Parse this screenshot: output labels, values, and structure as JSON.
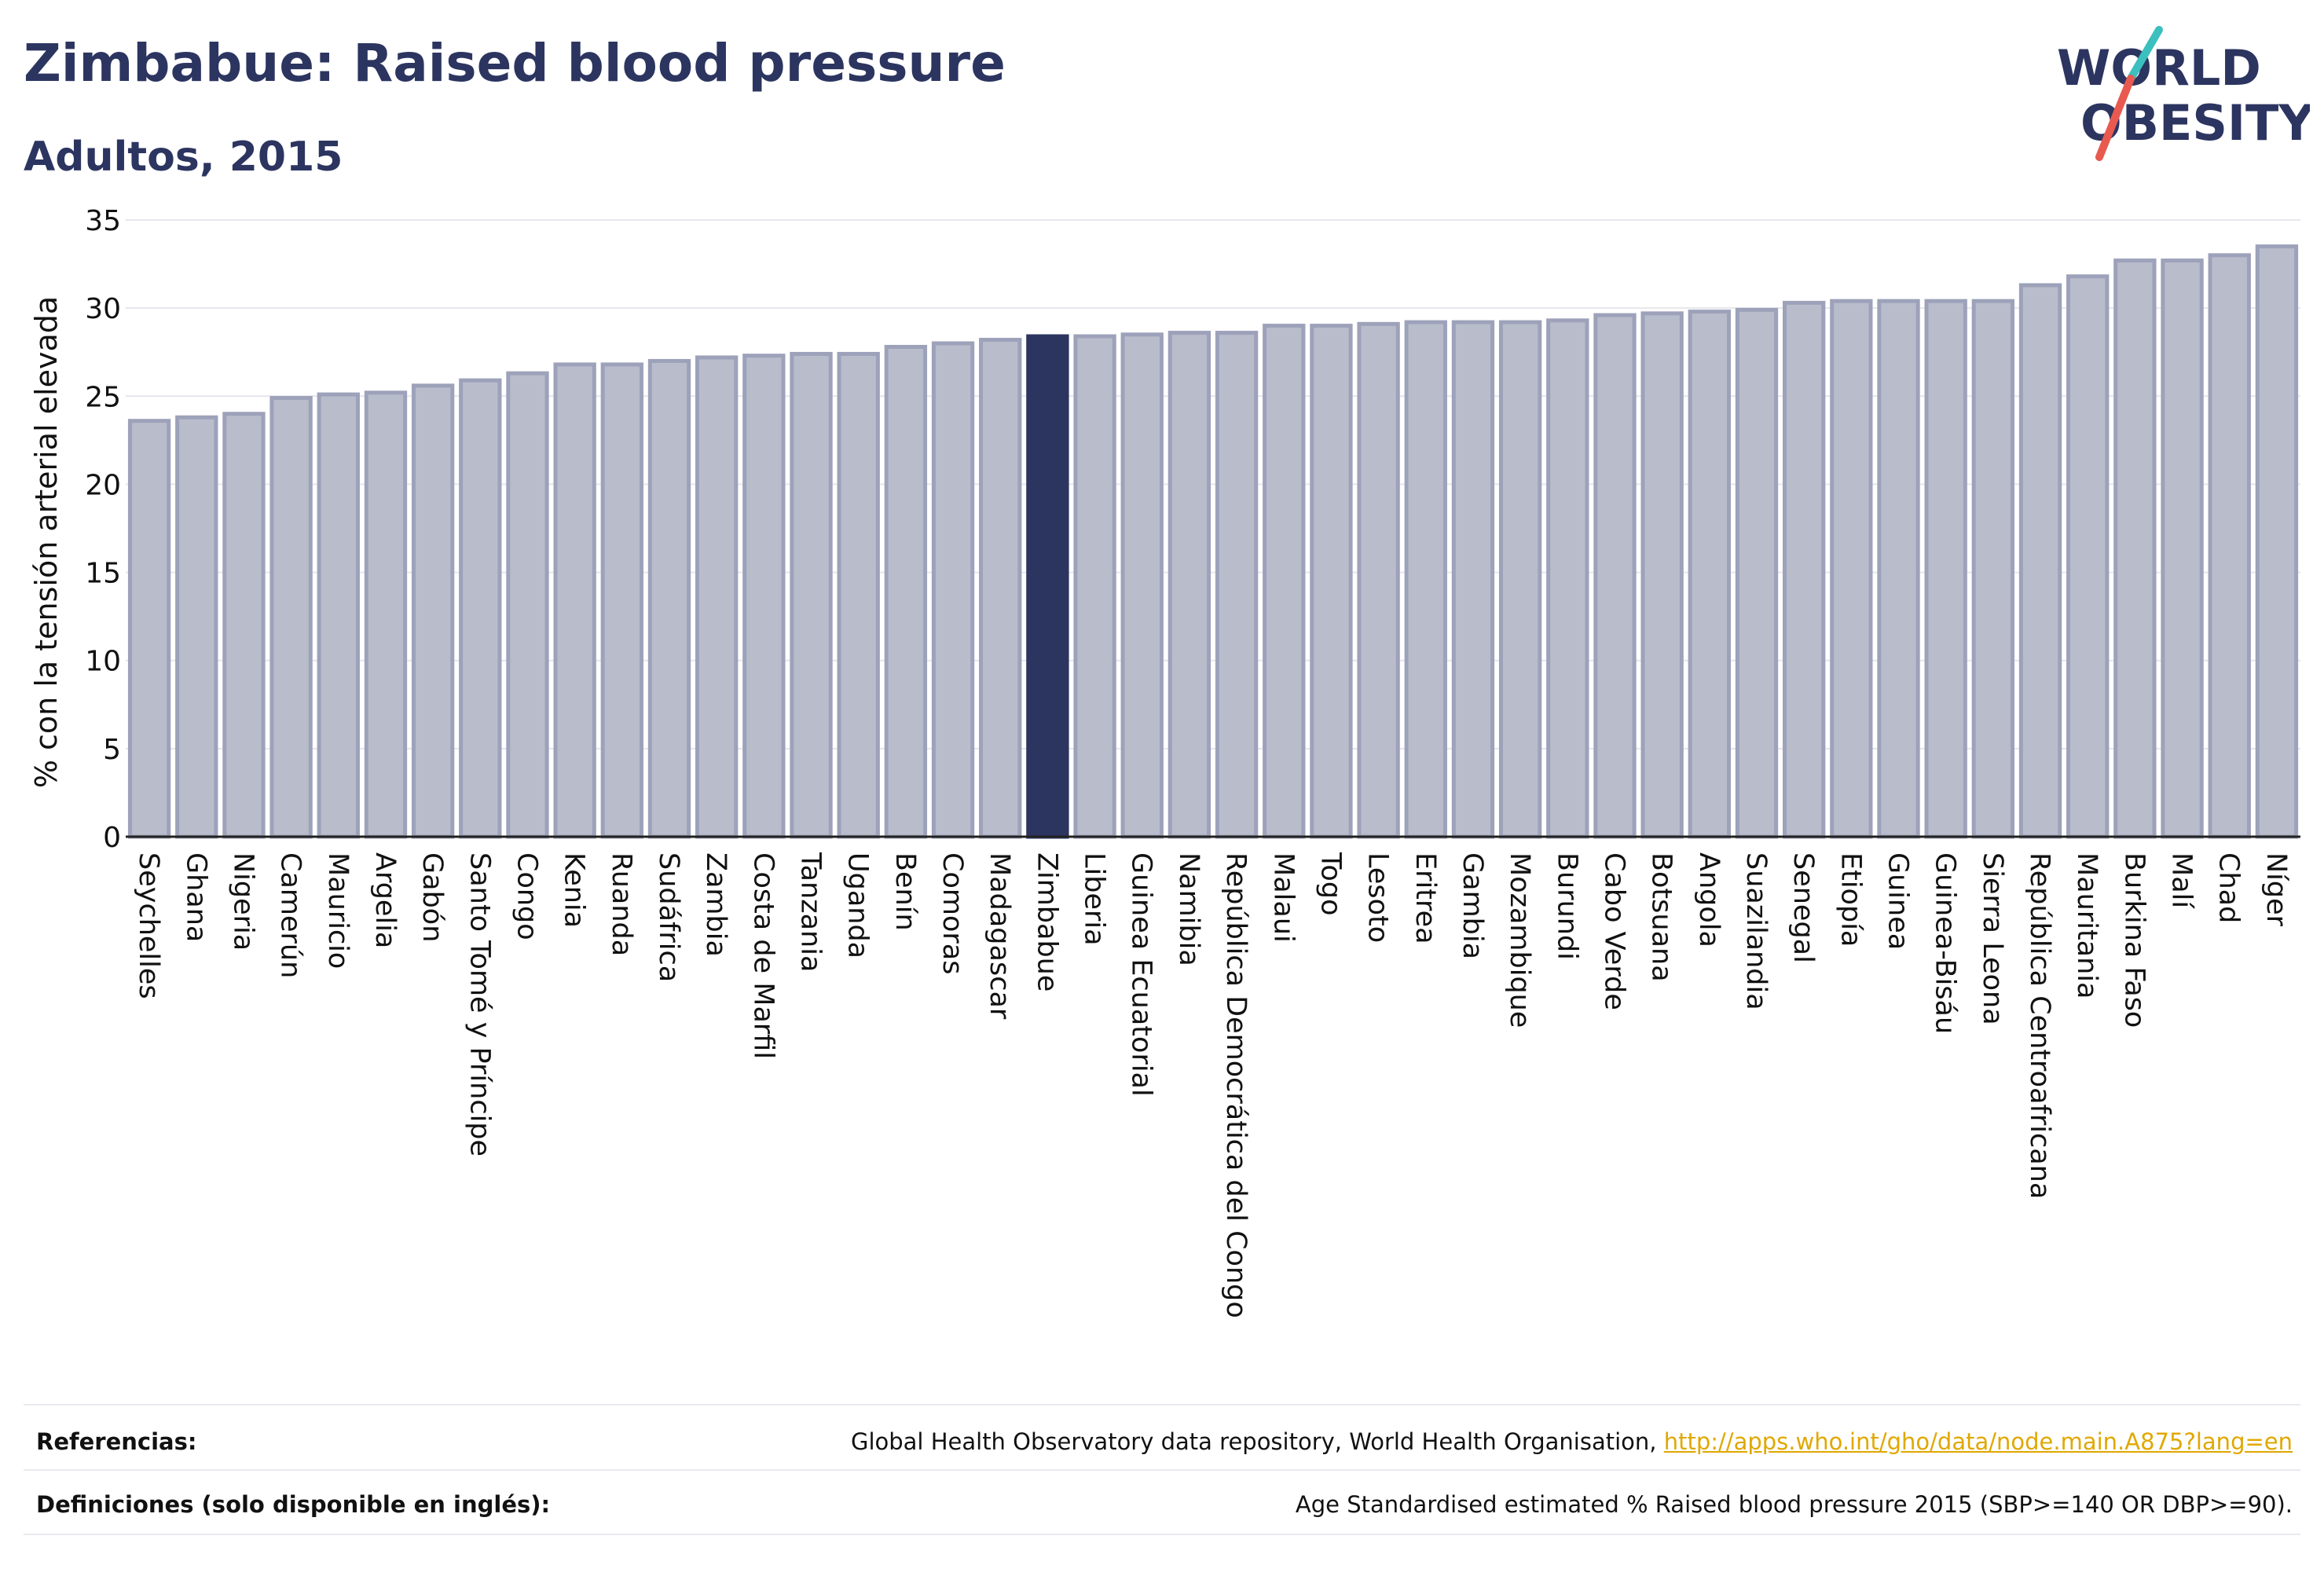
{
  "header": {
    "title": "Zimbabue: Raised blood pressure",
    "subtitle": "Adultos, 2015"
  },
  "logo": {
    "line1": "WORLD",
    "line2": "OBESITY",
    "text_color": "#2c3560",
    "slash_colors": [
      "#3bbfbf",
      "#e85a4f"
    ]
  },
  "chart_data": {
    "type": "bar",
    "ylabel": "% con la tensión arterial elevada",
    "ylim": [
      0,
      35
    ],
    "yticks": [
      0,
      5,
      10,
      15,
      20,
      25,
      30,
      35
    ],
    "grid": true,
    "highlight": "Zimbabue",
    "colors": {
      "bar": "#b9bccb",
      "bar_edge": "#9da2ba",
      "highlight": "#2c3560"
    },
    "categories": [
      "Seychelles",
      "Ghana",
      "Nigeria",
      "Camerún",
      "Mauricio",
      "Argelia",
      "Gabón",
      "Santo Tomé y Príncipe",
      "Congo",
      "Kenia",
      "Ruanda",
      "Sudáfrica",
      "Zambia",
      "Costa de Marfil",
      "Tanzania",
      "Uganda",
      "Benín",
      "Comoras",
      "Madagascar",
      "Zimbabue",
      "Liberia",
      "Guinea Ecuatorial",
      "Namibia",
      "República Democrática del Congo",
      "Malaui",
      "Togo",
      "Lesoto",
      "Eritrea",
      "Gambia",
      "Mozambique",
      "Burundi",
      "Cabo Verde",
      "Botsuana",
      "Angola",
      "Suazilandia",
      "Senegal",
      "Etiopía",
      "Guinea",
      "Guinea-Bisáu",
      "Sierra Leona",
      "República Centroafricana",
      "Mauritania",
      "Burkina Faso",
      "Malí",
      "Chad",
      "Níger"
    ],
    "values": [
      23.6,
      23.8,
      24.0,
      24.9,
      25.1,
      25.2,
      25.6,
      25.9,
      26.3,
      26.8,
      26.8,
      27.0,
      27.2,
      27.3,
      27.4,
      27.4,
      27.8,
      28.0,
      28.2,
      28.4,
      28.4,
      28.5,
      28.6,
      28.6,
      29.0,
      29.0,
      29.1,
      29.2,
      29.2,
      29.2,
      29.3,
      29.6,
      29.7,
      29.8,
      29.9,
      30.3,
      30.4,
      30.4,
      30.4,
      30.4,
      31.3,
      31.8,
      32.7,
      32.7,
      33.0,
      33.5
    ]
  },
  "footer": {
    "references_label": "Referencias:",
    "references_text": "Global Health Observatory data repository, World Health Organisation, ",
    "references_link": "http://apps.who.int/gho/data/node.main.A875?lang=en",
    "definitions_label": "Definiciones (solo disponible en inglés):",
    "definitions_text": "Age Standardised estimated % Raised blood pressure 2015 (SBP>=140 OR DBP>=90)."
  }
}
